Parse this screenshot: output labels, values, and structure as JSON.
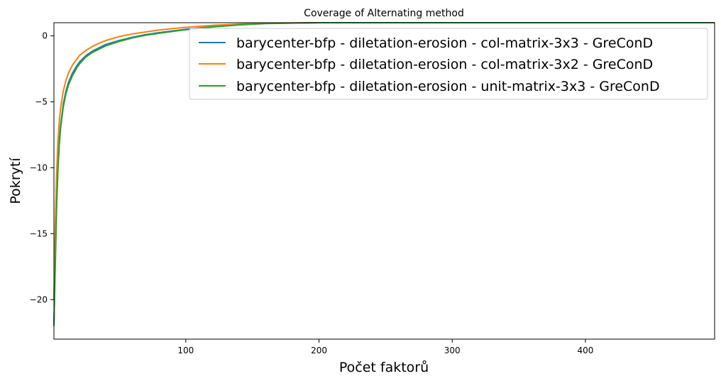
{
  "chart_data": {
    "type": "line",
    "title": "Coverage of Alternating method",
    "xlabel": "Počet faktorů",
    "ylabel": "Pokrytí",
    "xlim": [
      1,
      497
    ],
    "ylim": [
      -23,
      1
    ],
    "xticks": [
      100,
      200,
      300,
      400
    ],
    "yticks": [
      0,
      -5,
      -10,
      -15,
      -20
    ],
    "ytick_labels": [
      "0",
      "−5",
      "−10",
      "−15",
      "−20"
    ],
    "grid": false,
    "legend_position": "upper-right",
    "series": [
      {
        "name": "barycenter-bfp - diletation-erosion - col-matrix-3x3 - GreConD",
        "color": "#1f77b4",
        "x": [
          1,
          2,
          3,
          4,
          5,
          6,
          8,
          10,
          12,
          15,
          18,
          20,
          25,
          30,
          35,
          40,
          50,
          60,
          70,
          80,
          100,
          120,
          140,
          160,
          200,
          250,
          300,
          350,
          400,
          450,
          497
        ],
        "y": [
          -22.0,
          -17.0,
          -12.5,
          -9.8,
          -8.0,
          -6.8,
          -5.2,
          -4.2,
          -3.5,
          -2.8,
          -2.3,
          -2.0,
          -1.5,
          -1.15,
          -0.9,
          -0.65,
          -0.35,
          -0.1,
          0.1,
          0.25,
          0.5,
          0.7,
          0.85,
          0.95,
          1.0,
          1.0,
          1.0,
          1.0,
          1.0,
          1.0,
          1.0
        ]
      },
      {
        "name": "barycenter-bfp - diletation-erosion - col-matrix-3x2 - GreConD",
        "color": "#ff7f0e",
        "x": [
          1,
          2,
          3,
          4,
          5,
          6,
          8,
          10,
          12,
          15,
          18,
          20,
          25,
          30,
          35,
          40,
          50,
          60,
          70,
          80,
          100,
          120,
          140,
          160,
          200,
          250,
          300,
          350,
          400,
          450,
          497
        ],
        "y": [
          -20.0,
          -14.5,
          -10.5,
          -8.0,
          -6.5,
          -5.5,
          -4.2,
          -3.4,
          -2.8,
          -2.2,
          -1.8,
          -1.5,
          -1.1,
          -0.8,
          -0.55,
          -0.35,
          -0.05,
          0.15,
          0.3,
          0.45,
          0.65,
          0.8,
          0.9,
          0.97,
          1.0,
          1.0,
          1.0,
          1.0,
          1.0,
          1.0,
          1.0
        ]
      },
      {
        "name": "barycenter-bfp - diletation-erosion - unit-matrix-3x3 - GreConD",
        "color": "#2ca02c",
        "x": [
          1,
          2,
          3,
          4,
          5,
          6,
          8,
          10,
          12,
          15,
          18,
          20,
          25,
          30,
          35,
          40,
          50,
          60,
          70,
          80,
          100,
          120,
          140,
          160,
          200,
          250,
          300,
          350,
          400,
          450,
          497
        ],
        "y": [
          -22.0,
          -17.5,
          -13.0,
          -10.2,
          -8.3,
          -7.0,
          -5.4,
          -4.4,
          -3.7,
          -3.0,
          -2.45,
          -2.15,
          -1.6,
          -1.25,
          -1.0,
          -0.75,
          -0.42,
          -0.15,
          0.05,
          0.2,
          0.47,
          0.68,
          0.83,
          0.93,
          1.0,
          1.0,
          1.0,
          1.0,
          1.0,
          1.0,
          1.0
        ]
      }
    ]
  }
}
